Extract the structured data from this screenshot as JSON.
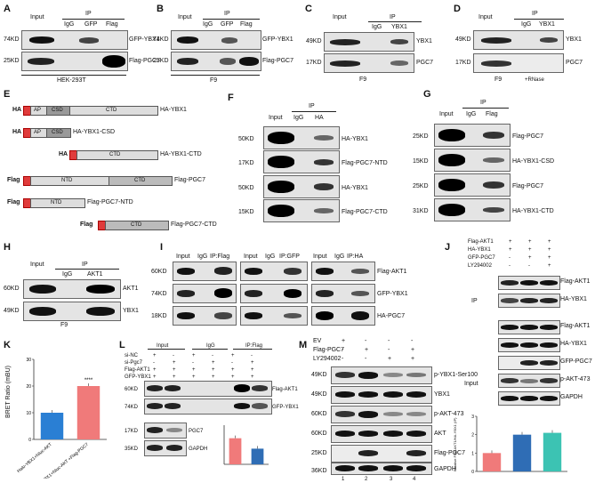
{
  "panel_labels": [
    "A",
    "B",
    "C",
    "D",
    "E",
    "F",
    "G",
    "H",
    "I",
    "J",
    "K",
    "L",
    "M"
  ],
  "A": {
    "input": "Input",
    "ip": "IP",
    "lanes": [
      "IgG",
      "GFP",
      "Flag"
    ],
    "mw": [
      "74KD",
      "25KD"
    ],
    "rows": [
      "GFP-YBX1",
      "Flag-PGC7"
    ],
    "cell": "HEK-293T"
  },
  "B": {
    "input": "Input",
    "ip": "IP",
    "lanes": [
      "IgG",
      "GFP",
      "Flag"
    ],
    "mw": [
      "74KD",
      "25KD"
    ],
    "rows": [
      "GFP-YBX1",
      "Flag-PGC7"
    ],
    "cell": "F9"
  },
  "C": {
    "input": "Input",
    "ip": "IP",
    "lanes": [
      "IgG",
      "YBX1"
    ],
    "mw": [
      "49KD",
      "17KD"
    ],
    "rows": [
      "YBX1",
      "PGC7"
    ],
    "cell": "F9"
  },
  "D": {
    "input": "Input",
    "ip": "IP",
    "lanes": [
      "IgG",
      "YBX1"
    ],
    "mw": [
      "49KD",
      "17KD"
    ],
    "rows": [
      "YBX1",
      "PGC7"
    ],
    "cell": "F9",
    "rnase": "+RNase"
  },
  "E": {
    "constructs": [
      {
        "tag": "HA",
        "name": "HA-YBX1",
        "domains": [
          "AP",
          "CSD",
          "CTD"
        ]
      },
      {
        "tag": "HA",
        "name": "HA-YBX1-CSD",
        "domains": [
          "AP",
          "CSD"
        ]
      },
      {
        "tag": "HA",
        "name": "HA-YBX1-CTD",
        "domains": [
          "CTD"
        ]
      },
      {
        "tag": "Flag",
        "name": "Flag-PGC7",
        "domains": [
          "NTD",
          "CTD"
        ]
      },
      {
        "tag": "Flag",
        "name": "Flag-PGC7-NTD",
        "domains": [
          "NTD"
        ]
      },
      {
        "tag": "Flag",
        "name": "Flag-PGC7-CTD",
        "domains": [
          "CTD"
        ]
      }
    ]
  },
  "F": {
    "input": "Input",
    "ip": "IP",
    "lanes": [
      "IgG",
      "HA"
    ],
    "mw": [
      "50KD",
      "17KD",
      "50KD",
      "15KD"
    ],
    "rows": [
      "HA-YBX1",
      "Flag-PGC7-NTD",
      "HA-YBX1",
      "Flag-PGC7-CTD"
    ]
  },
  "G": {
    "input": "Input",
    "ip": "IP",
    "lanes": [
      "IgG",
      "Flag"
    ],
    "mw": [
      "25KD",
      "15KD",
      "25KD",
      "31KD"
    ],
    "rows": [
      "Flag-PGC7",
      "HA-YBX1-CSD",
      "Flag-PGC7",
      "HA-YBX1-CTD"
    ]
  },
  "H": {
    "input": "Input",
    "ip": "IP",
    "lanes": [
      "IgG",
      "AKT1"
    ],
    "mw": [
      "60KD",
      "49KD"
    ],
    "rows": [
      "AKT1",
      "YBX1"
    ],
    "cell": "F9"
  },
  "I": {
    "mw": [
      "60KD",
      "74KD",
      "18KD"
    ],
    "rows": [
      "Flag-AKT1",
      "GFP-YBX1",
      "HA-PGC7"
    ],
    "blocks": [
      [
        "Input",
        "IgG",
        "IP:Flag"
      ],
      [
        "Input",
        "IgG",
        "IP:GFP"
      ],
      [
        "Input",
        "IgG",
        "IP:HA"
      ]
    ]
  },
  "J": {
    "conditions": [
      "Flag-AKT1",
      "HA-YBX1",
      "GFP-PGC7",
      "LY294002"
    ],
    "signs": [
      [
        "+",
        "+",
        "+"
      ],
      [
        "+",
        "+",
        "+"
      ],
      [
        "-",
        "+",
        "+"
      ],
      [
        "-",
        "-",
        "+"
      ]
    ],
    "ip_label": "IP",
    "input_label": "Input",
    "ip_rows": [
      "Flag-AKT1",
      "HA-YBX1"
    ],
    "input_rows": [
      "Flag-AKT1",
      "HA-YBX1",
      "GFP-PGC7",
      "p-AKT-473",
      "GAPDH"
    ],
    "ylabel": "Relative Flag-AKT1/HA-YBX1 (IP)"
  },
  "K": {
    "ylabel": "BRET Ratio (mBU)",
    "sig": "****",
    "categories": [
      "Halo-YBX1+Nluc-AKT",
      "Halo-YBX1+Nluc-AKT +Flag-PGC7"
    ]
  },
  "L": {
    "groups": [
      "Input",
      "IgG",
      "IP:Flag"
    ],
    "conditions": [
      "si-NC",
      "si-Pgc7",
      "Flag-AKT1",
      "GFP-YBX1"
    ],
    "signs": [
      [
        "+",
        "-",
        "+",
        "-",
        "+",
        "-"
      ],
      [
        "-",
        "+",
        "-",
        "+",
        "-",
        "+"
      ],
      [
        "+",
        "+",
        "+",
        "+",
        "+",
        "+"
      ],
      [
        "+",
        "+",
        "+",
        "+",
        "+",
        "+"
      ]
    ],
    "mw": [
      "60KD",
      "74KD",
      "17KD",
      "35KD"
    ],
    "rows": [
      "Flag-AKT1",
      "GFP-YBX1",
      "PGC7",
      "GAPDH"
    ]
  },
  "M": {
    "conditions": [
      "EV",
      "Flag-PGC7",
      "LY294002"
    ],
    "signs": [
      [
        "+",
        "-",
        "-",
        "-"
      ],
      [
        "-",
        "+",
        "-",
        "+"
      ],
      [
        "-",
        "-",
        "+",
        "+"
      ]
    ],
    "mw": [
      "49KD",
      "49KD",
      "60KD",
      "60KD",
      "25KD",
      "36KD"
    ],
    "rows": [
      "p-YBX1-Ser100",
      "YBX1",
      "p-AKT-473",
      "AKT",
      "Flag-PGC7",
      "GAPDH"
    ],
    "lanes": [
      "1",
      "2",
      "3",
      "4"
    ]
  },
  "chart_data": [
    {
      "type": "bar",
      "panel": "K",
      "categories": [
        "Halo-YBX1+Nluc-AKT",
        "Halo-YBX1+Nluc-AKT +Flag-PGC7"
      ],
      "values": [
        10,
        20
      ],
      "ylim": [
        0,
        30
      ],
      "ylabel": "BRET Ratio (mBU)",
      "colors": [
        "#2a7fd4",
        "#f07a7a"
      ]
    },
    {
      "type": "bar",
      "panel": "J",
      "values": [
        1.0,
        2.0,
        2.1
      ],
      "ylim": [
        0,
        3
      ],
      "colors": [
        "#f07a7a",
        "#2f6db5",
        "#3cc3b3"
      ]
    },
    {
      "type": "bar",
      "panel": "L",
      "values": [
        1.0,
        0.6
      ],
      "ylim": [
        0,
        1.5
      ],
      "colors": [
        "#f07a7a",
        "#2f6db5"
      ]
    }
  ]
}
